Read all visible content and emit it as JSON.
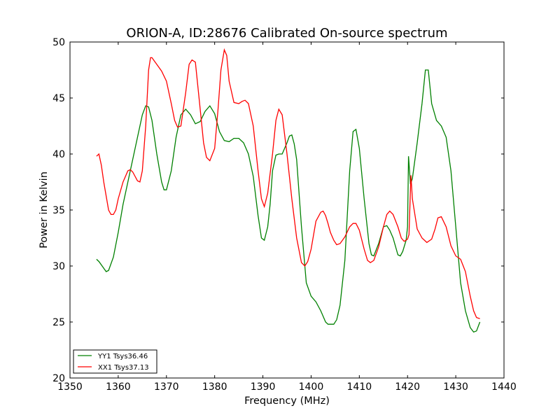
{
  "chart_data": {
    "type": "line",
    "title": "ORION-A, ID:28676 Calibrated On-source spectrum",
    "xlabel": "Frequency (MHz)",
    "ylabel": "Power in Kelvin",
    "xlim": [
      1350,
      1440
    ],
    "ylim": [
      20,
      50
    ],
    "xticks": [
      1350,
      1360,
      1370,
      1380,
      1390,
      1400,
      1410,
      1420,
      1430,
      1440
    ],
    "yticks": [
      20,
      25,
      30,
      35,
      40,
      45,
      50
    ],
    "grid": false,
    "legend_placement": "lower-left",
    "series": [
      {
        "name": "YY1 Tsys36.46",
        "color": "#008000",
        "x": [
          1355.5,
          1356,
          1357,
          1357.5,
          1358,
          1359,
          1360,
          1361,
          1362,
          1363,
          1364,
          1365,
          1365.7,
          1366.3,
          1367,
          1368,
          1369,
          1369.5,
          1370,
          1371,
          1372,
          1373,
          1374,
          1375,
          1376,
          1377,
          1378,
          1379,
          1380,
          1381,
          1382,
          1383,
          1384,
          1385,
          1386,
          1387,
          1388,
          1389,
          1389.7,
          1390.3,
          1391,
          1391.5,
          1392,
          1392.7,
          1393.3,
          1394,
          1395,
          1395.5,
          1396,
          1396.5,
          1397,
          1398,
          1399,
          1400,
          1401,
          1402,
          1402.5,
          1403,
          1403.5,
          1404,
          1404.7,
          1405.3,
          1406,
          1407,
          1408,
          1408.7,
          1409.3,
          1410,
          1411,
          1412,
          1412.5,
          1413,
          1414,
          1415,
          1415.7,
          1416.3,
          1417,
          1418,
          1418.5,
          1419,
          1419.7,
          1420,
          1420.2,
          1420.6,
          1421,
          1422,
          1423,
          1423.7,
          1424.3,
          1425,
          1426,
          1427,
          1428,
          1429,
          1430,
          1431,
          1432,
          1433,
          1433.7,
          1434.3,
          1435
        ],
        "values": [
          30.6,
          30.4,
          29.8,
          29.5,
          29.6,
          30.8,
          33.0,
          35.5,
          37.5,
          39.5,
          41.5,
          43.5,
          44.3,
          44.2,
          43.0,
          40.0,
          37.5,
          36.8,
          36.8,
          38.5,
          41.5,
          43.5,
          44.0,
          43.5,
          42.7,
          42.9,
          43.8,
          44.3,
          43.6,
          42.0,
          41.2,
          41.1,
          41.4,
          41.4,
          41.0,
          40.0,
          38.0,
          34.5,
          32.5,
          32.3,
          33.5,
          35.5,
          38.5,
          39.9,
          40.0,
          40.0,
          41.0,
          41.6,
          41.7,
          40.9,
          39.5,
          33.5,
          28.5,
          27.3,
          26.8,
          26.0,
          25.5,
          25.0,
          24.8,
          24.8,
          24.8,
          25.2,
          26.5,
          30.5,
          38.5,
          42.0,
          42.2,
          40.5,
          36.0,
          32.0,
          31.0,
          30.9,
          32.0,
          33.5,
          33.6,
          33.2,
          32.5,
          31.0,
          30.9,
          31.3,
          32.3,
          33.5,
          39.8,
          37.3,
          37.8,
          41.0,
          44.5,
          47.5,
          47.5,
          44.5,
          43.0,
          42.5,
          41.5,
          38.5,
          33.5,
          28.5,
          26.0,
          24.5,
          24.1,
          24.2,
          25.0
        ]
      },
      {
        "name": "XX1 Tsys37.13",
        "color": "#ff0000",
        "x": [
          1355.5,
          1356,
          1356.5,
          1357,
          1358,
          1358.5,
          1359,
          1359.5,
          1360,
          1361,
          1362,
          1362.5,
          1363,
          1363.5,
          1364,
          1364.5,
          1365,
          1365.7,
          1366.3,
          1366.7,
          1367,
          1367.5,
          1368,
          1369,
          1370,
          1371,
          1371.7,
          1372.3,
          1373,
          1374,
          1374.7,
          1375.3,
          1376,
          1377,
          1377.7,
          1378.3,
          1379,
          1380,
          1380.7,
          1381.3,
          1382,
          1382.5,
          1383,
          1384,
          1385,
          1385.7,
          1386.3,
          1387,
          1388,
          1389,
          1389.7,
          1390.3,
          1391,
          1392,
          1392.7,
          1393.3,
          1394,
          1395,
          1396,
          1397,
          1398,
          1398.7,
          1399.3,
          1400,
          1401,
          1402,
          1402.5,
          1403,
          1403.5,
          1404,
          1404.7,
          1405.3,
          1406,
          1407,
          1408,
          1408.7,
          1409.3,
          1410,
          1411,
          1411.7,
          1412.3,
          1413,
          1414,
          1415,
          1415.7,
          1416.3,
          1417,
          1418,
          1418.7,
          1419.3,
          1420,
          1420.3,
          1420.7,
          1421,
          1422,
          1423,
          1424,
          1425,
          1425.7,
          1426.3,
          1427,
          1428,
          1429,
          1430,
          1431,
          1432,
          1433,
          1433.7,
          1434.3,
          1435
        ],
        "values": [
          39.8,
          40.0,
          39.0,
          37.5,
          35.0,
          34.6,
          34.6,
          35.0,
          36.0,
          37.5,
          38.5,
          38.6,
          38.4,
          38.0,
          37.6,
          37.5,
          38.5,
          42.5,
          47.5,
          48.6,
          48.6,
          48.3,
          48.0,
          47.4,
          46.5,
          44.5,
          43.0,
          42.4,
          42.5,
          45.5,
          48.0,
          48.4,
          48.2,
          44.0,
          41.0,
          39.7,
          39.4,
          40.5,
          44.0,
          47.5,
          49.3,
          48.8,
          46.5,
          44.6,
          44.5,
          44.7,
          44.8,
          44.5,
          42.5,
          38.5,
          36.0,
          35.3,
          36.5,
          40.0,
          43.0,
          44.0,
          43.5,
          40.0,
          36.0,
          32.5,
          30.3,
          30.0,
          30.4,
          31.5,
          34.0,
          34.8,
          34.9,
          34.5,
          33.8,
          33.0,
          32.3,
          31.9,
          32.0,
          32.6,
          33.5,
          33.8,
          33.8,
          33.2,
          31.5,
          30.5,
          30.3,
          30.5,
          31.7,
          33.5,
          34.6,
          34.9,
          34.6,
          33.5,
          32.5,
          32.2,
          32.4,
          32.8,
          38.1,
          36.0,
          33.3,
          32.5,
          32.1,
          32.4,
          33.3,
          34.3,
          34.4,
          33.5,
          31.8,
          30.9,
          30.6,
          29.5,
          27.3,
          26.0,
          25.4,
          25.3
        ]
      }
    ]
  }
}
